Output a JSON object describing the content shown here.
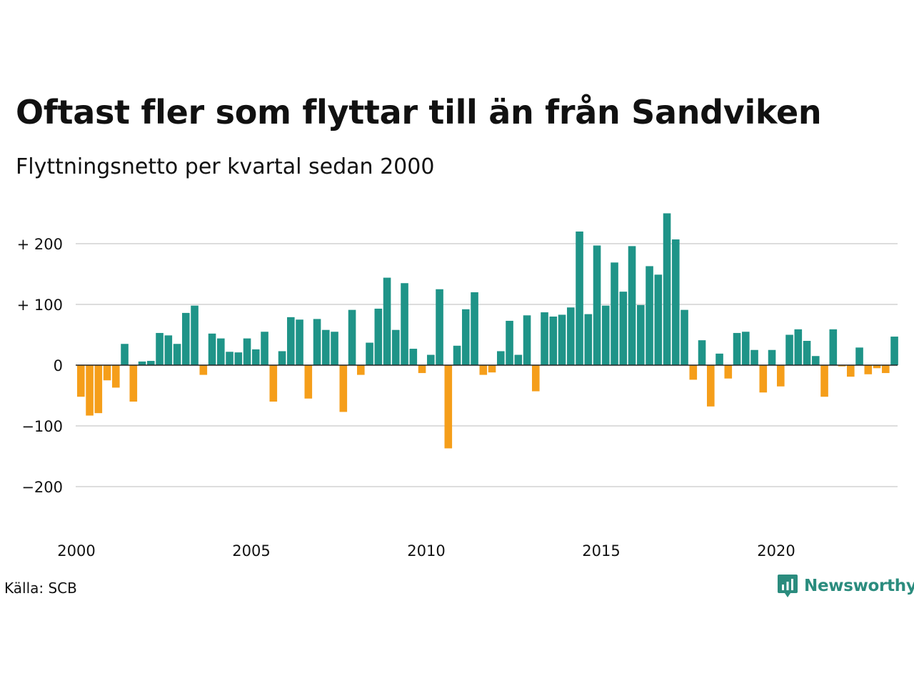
{
  "title": "Oftast fler som flyttar till än från Sandviken",
  "subtitle": "Flyttningsnetto per kvartal sedan 2000",
  "source": "Källa: SCB",
  "brand": "Newsworthy",
  "colors": {
    "positive": "#1f9488",
    "negative": "#f59e1a",
    "grid": "#dddddd",
    "zero": "#222222",
    "brand": "#2b8c7e"
  },
  "chart_data": {
    "type": "bar",
    "title": "Oftast fler som flyttar till än från Sandviken",
    "subtitle": "Flyttningsnetto per kvartal sedan 2000",
    "xlabel": "",
    "ylabel": "",
    "ylim": [
      -250,
      250
    ],
    "yticks": [
      {
        "value": 200,
        "label": "+ 200"
      },
      {
        "value": 100,
        "label": "+ 100"
      },
      {
        "value": 0,
        "label": "0"
      },
      {
        "value": -100,
        "label": "−100"
      },
      {
        "value": -200,
        "label": "−200"
      }
    ],
    "xticks": [
      "2000",
      "2005",
      "2010",
      "2015",
      "2020"
    ],
    "grid": true,
    "start_year": 2000,
    "series": [
      {
        "values": [
          -52,
          -83,
          -79,
          -25,
          -37,
          35,
          -60,
          6,
          7,
          53,
          49,
          35,
          86,
          98,
          -16,
          52,
          44,
          22,
          21,
          44,
          26,
          55,
          -60,
          23,
          79,
          75,
          -55,
          76,
          58,
          55,
          -77,
          91,
          -16,
          37,
          93,
          144,
          58,
          135,
          27,
          -13,
          17,
          125,
          -137,
          32,
          92,
          120,
          -16,
          -12,
          23,
          73,
          17,
          82,
          -43,
          87,
          80,
          83,
          95,
          220,
          84,
          197,
          98,
          169,
          121,
          196,
          99,
          163,
          149,
          250,
          207,
          91,
          -24,
          41,
          -68,
          19,
          -22,
          53,
          55,
          25,
          -45,
          25,
          -35,
          50,
          59,
          40,
          15,
          -52,
          59,
          -2,
          -19,
          29,
          -15,
          -5,
          -13,
          47
        ]
      }
    ]
  }
}
